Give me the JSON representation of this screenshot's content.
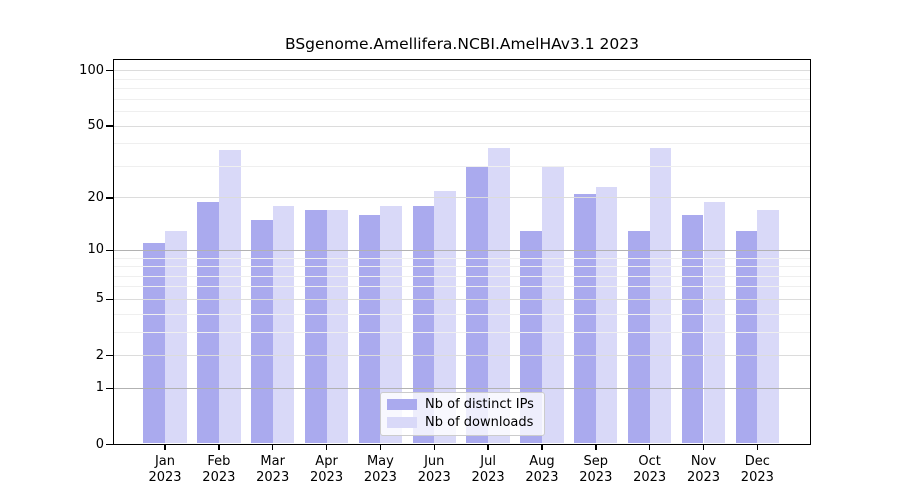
{
  "title": "BSgenome.Amellifera.NCBI.AmelHAv3.1 2023",
  "chart_data": {
    "type": "bar",
    "categories": [
      "Jan",
      "Feb",
      "Mar",
      "Apr",
      "May",
      "Jun",
      "Jul",
      "Aug",
      "Sep",
      "Oct",
      "Nov",
      "Dec"
    ],
    "year": "2023",
    "series": [
      {
        "id": "distinct-ips",
        "name": "Nb of distinct IPs",
        "color": "#aaaaee",
        "values": [
          11,
          19,
          15,
          17,
          16,
          18,
          30,
          13,
          21,
          13,
          16,
          13
        ]
      },
      {
        "id": "downloads",
        "name": "Nb of downloads",
        "color": "#d9d9f8",
        "values": [
          13,
          37,
          18,
          17,
          18,
          22,
          38,
          30,
          23,
          38,
          19,
          17
        ]
      }
    ],
    "y_axis": {
      "scale": "log1p",
      "ticks": [
        0,
        1,
        2,
        5,
        10,
        20,
        50,
        100
      ],
      "major_gridlines": [
        1,
        10
      ],
      "mid_gridlines": [
        2,
        5,
        20,
        50,
        100
      ],
      "minor_gridlines": [
        3,
        4,
        6,
        7,
        8,
        9,
        30,
        40,
        60,
        70,
        80,
        90
      ],
      "ylim": [
        0,
        116
      ],
      "grid_on": true,
      "grid_above_bars": true
    },
    "legend": {
      "position": "bottom-center",
      "entries": [
        "Nb of distinct IPs",
        "Nb of downloads"
      ]
    }
  }
}
